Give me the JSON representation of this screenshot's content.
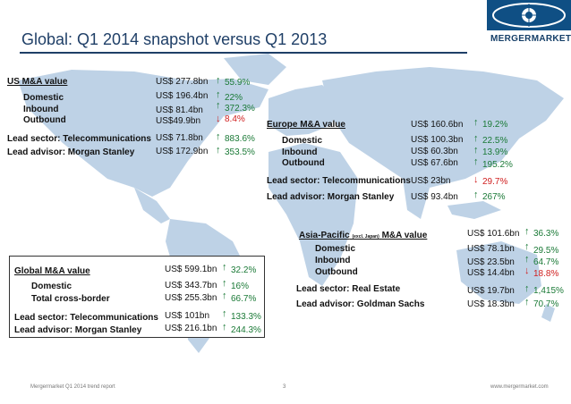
{
  "header": {
    "title": "Global: Q1 2014 snapshot versus Q1 2013",
    "brand": "MERGERMARKET"
  },
  "us": {
    "heading": "US M&A value",
    "rows": [
      {
        "label": "Domestic",
        "value": "US$ 196.4bn",
        "change": "22%",
        "dir": "up"
      },
      {
        "label": "Inbound",
        "value": "US$ 81.4bn",
        "change": "372.3%",
        "dir": "up"
      },
      {
        "label": "Outbound",
        "value": "US$49.9bn",
        "change": "8.4%",
        "dir": "down"
      }
    ],
    "total": {
      "value": "US$ 277.8bn",
      "change": "55.9%"
    },
    "sector": {
      "label": "Lead sector: Telecommunications",
      "value": "US$ 71.8bn",
      "change": "883.6%"
    },
    "advisor": {
      "label": "Lead advisor: Morgan Stanley",
      "value": "US$ 172.9bn",
      "change": "353.5%"
    }
  },
  "europe": {
    "heading": "Europe M&A value",
    "total": {
      "value": "US$ 160.6bn",
      "change": "19.2%"
    },
    "rows": [
      {
        "label": "Domestic",
        "value": "US$ 100.3bn",
        "change": "22.5%",
        "dir": "up"
      },
      {
        "label": "Inbound",
        "value": "US$ 60.3bn",
        "change": "13.9%",
        "dir": "up"
      },
      {
        "label": "Outbound",
        "value": "US$ 67.6bn",
        "change": "195.2%",
        "dir": "up"
      }
    ],
    "sector": {
      "label": "Lead sector: Telecommunications",
      "value": "US$ 23bn",
      "change": "29.7%",
      "dir": "down"
    },
    "advisor": {
      "label": "Lead advisor: Morgan Stanley",
      "value": "US$ 93.4bn",
      "change": "267%"
    }
  },
  "apac": {
    "heading_pre": "Asia-Pacific",
    "heading_note": "(excl. Japan)",
    "heading_post": "M&A value",
    "total": {
      "value": "US$ 101.6bn",
      "change": "36.3%"
    },
    "rows": [
      {
        "label": "Domestic",
        "value": "US$ 78.1bn",
        "change": "29.5%",
        "dir": "up"
      },
      {
        "label": "Inbound",
        "value": "US$ 23.5bn",
        "change": "64.7%",
        "dir": "up"
      },
      {
        "label": "Outbound",
        "value": "US$ 14.4bn",
        "change": "18.8%",
        "dir": "down"
      }
    ],
    "sector": {
      "label": "Lead sector: Real Estate",
      "value": "US$ 19.7bn",
      "change": "1,415%"
    },
    "advisor": {
      "label": "Lead advisor: Goldman Sachs",
      "value": "US$ 18.3bn",
      "change": "70.7%"
    }
  },
  "global": {
    "heading": "Global M&A value",
    "total": {
      "value": "US$ 599.1bn",
      "change": "32.2%"
    },
    "rows": [
      {
        "label": "Domestic",
        "value": "US$ 343.7bn",
        "change": "16%",
        "dir": "up"
      },
      {
        "label": "Total cross-border",
        "value": "US$ 255.3bn",
        "change": "66.7%",
        "dir": "up"
      }
    ],
    "sector": {
      "label": "Lead sector: Telecommunications",
      "value": "US$ 101bn",
      "change": "133.3%"
    },
    "advisor": {
      "label": "Lead advisor: Morgan Stanley",
      "value": "US$ 216.1bn",
      "change": "244.3%"
    }
  },
  "footer": {
    "left": "Mergermarket Q1 2014 trend report",
    "page": "3",
    "right": "www.mergermarket.com"
  },
  "colors": {
    "accent": "#1f3f67",
    "up": "#1b7a37",
    "down": "#d02020",
    "map": "#bed2e6"
  },
  "icons": {
    "up": "up-arrow-icon",
    "down": "down-arrow-icon",
    "logo": "eye-globe-logo-icon"
  }
}
